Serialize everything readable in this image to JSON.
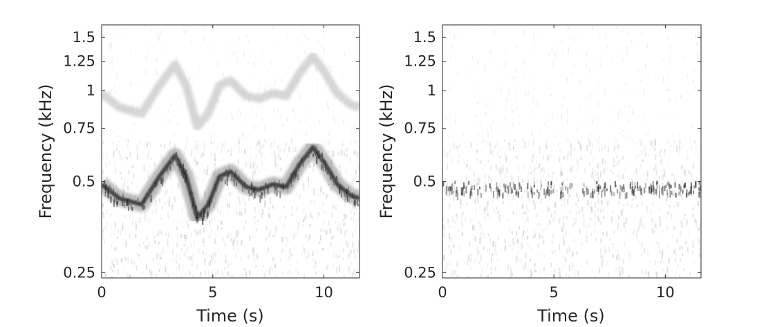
{
  "chart_data": [
    {
      "type": "heatmap",
      "xlabel": "Time (s)",
      "ylabel": "Frequency (kHz)",
      "xlim": [
        0,
        11.6
      ],
      "ylim": [
        0.24,
        1.65
      ],
      "yscale": "log",
      "colormap": "gray-inverted",
      "xticks": [
        0,
        5,
        10
      ],
      "xtick_labels": [
        "0",
        "5",
        "10"
      ],
      "yticks": [
        0.25,
        0.5,
        0.75,
        1,
        1.25,
        1.5
      ],
      "ytick_labels": [
        "0.25",
        "0.5",
        "0.75",
        "1",
        "1.25",
        "1.5"
      ],
      "ridge": {
        "t": [
          0,
          0.8,
          1.8,
          2.6,
          3.3,
          3.8,
          4.3,
          4.8,
          5.3,
          5.8,
          6.5,
          7.1,
          7.7,
          8.3,
          8.9,
          9.5,
          10.0,
          10.6,
          11.2,
          11.6
        ],
        "f": [
          0.49,
          0.44,
          0.42,
          0.52,
          0.61,
          0.52,
          0.38,
          0.42,
          0.52,
          0.54,
          0.48,
          0.47,
          0.49,
          0.48,
          0.57,
          0.65,
          0.58,
          0.49,
          0.45,
          0.44
        ]
      }
    },
    {
      "type": "heatmap",
      "xlabel": "Time (s)",
      "ylabel": "Frequency (kHz)",
      "xlim": [
        0,
        11.6
      ],
      "ylim": [
        0.24,
        1.65
      ],
      "yscale": "log",
      "colormap": "gray-inverted",
      "xticks": [
        0,
        5,
        10
      ],
      "xtick_labels": [
        "0",
        "5",
        "10"
      ],
      "yticks": [
        0.25,
        0.5,
        0.75,
        1,
        1.25,
        1.5
      ],
      "ytick_labels": [
        "0.25",
        "0.5",
        "0.75",
        "1",
        "1.25",
        "1.5"
      ],
      "ridge": {
        "t": [
          0,
          3,
          6,
          9,
          11.6
        ],
        "f": [
          0.48,
          0.48,
          0.48,
          0.48,
          0.48
        ]
      }
    }
  ]
}
